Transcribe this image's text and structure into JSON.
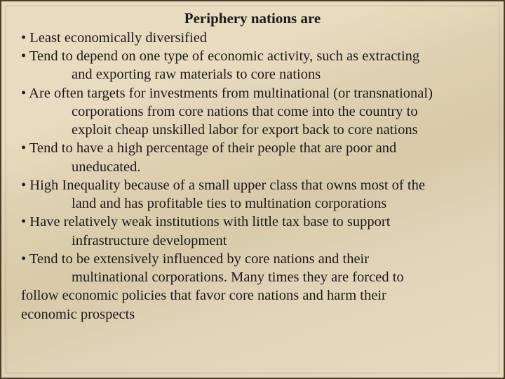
{
  "slide": {
    "title": "Periphery nations are",
    "background_gradient": [
      "#e8dcc0",
      "#ddd0b0",
      "#d8caa8",
      "#e0d4b8",
      "#e8dcc0"
    ],
    "border_color": "#4a3c28",
    "font_family": "Times New Roman",
    "title_fontsize": 21,
    "body_fontsize": 20.5,
    "text_color": "#1a1a1a",
    "lines": [
      {
        "text": " •  Least economically diversified",
        "indent": "bullet"
      },
      {
        "text": " •  Tend to depend on one type of economic activity, such as extracting",
        "indent": "bullet"
      },
      {
        "text": "and exporting raw materials to core nations",
        "indent": "cont"
      },
      {
        "text": " • Are often targets for investments from multinational (or transnational)",
        "indent": "bullet"
      },
      {
        "text": "corporations from core nations that come into the country to",
        "indent": "cont"
      },
      {
        "text": "exploit  cheap unskilled labor for export back to core nations",
        "indent": "cont"
      },
      {
        "text": " • Tend to have a high percentage of their people that are poor and",
        "indent": "bullet"
      },
      {
        "text": "uneducated.",
        "indent": "cont"
      },
      {
        "text": " •  High Inequality because of a small upper class that owns most of the",
        "indent": "bullet"
      },
      {
        "text": "land and has profitable ties to multination corporations",
        "indent": "cont"
      },
      {
        "text": " • Have relatively weak institutions with little tax base to support",
        "indent": "bullet"
      },
      {
        "text": "infrastructure development",
        "indent": "cont"
      },
      {
        "text": " • Tend to be extensively influenced by core nations and their",
        "indent": "bullet"
      },
      {
        "text": "multinational corporations. Many times they are forced to",
        "indent": "cont"
      },
      {
        "text": "follow   economic policies that favor core nations and harm their",
        "indent": "cont0"
      },
      {
        "text": "economic            prospects",
        "indent": "cont0"
      }
    ]
  }
}
